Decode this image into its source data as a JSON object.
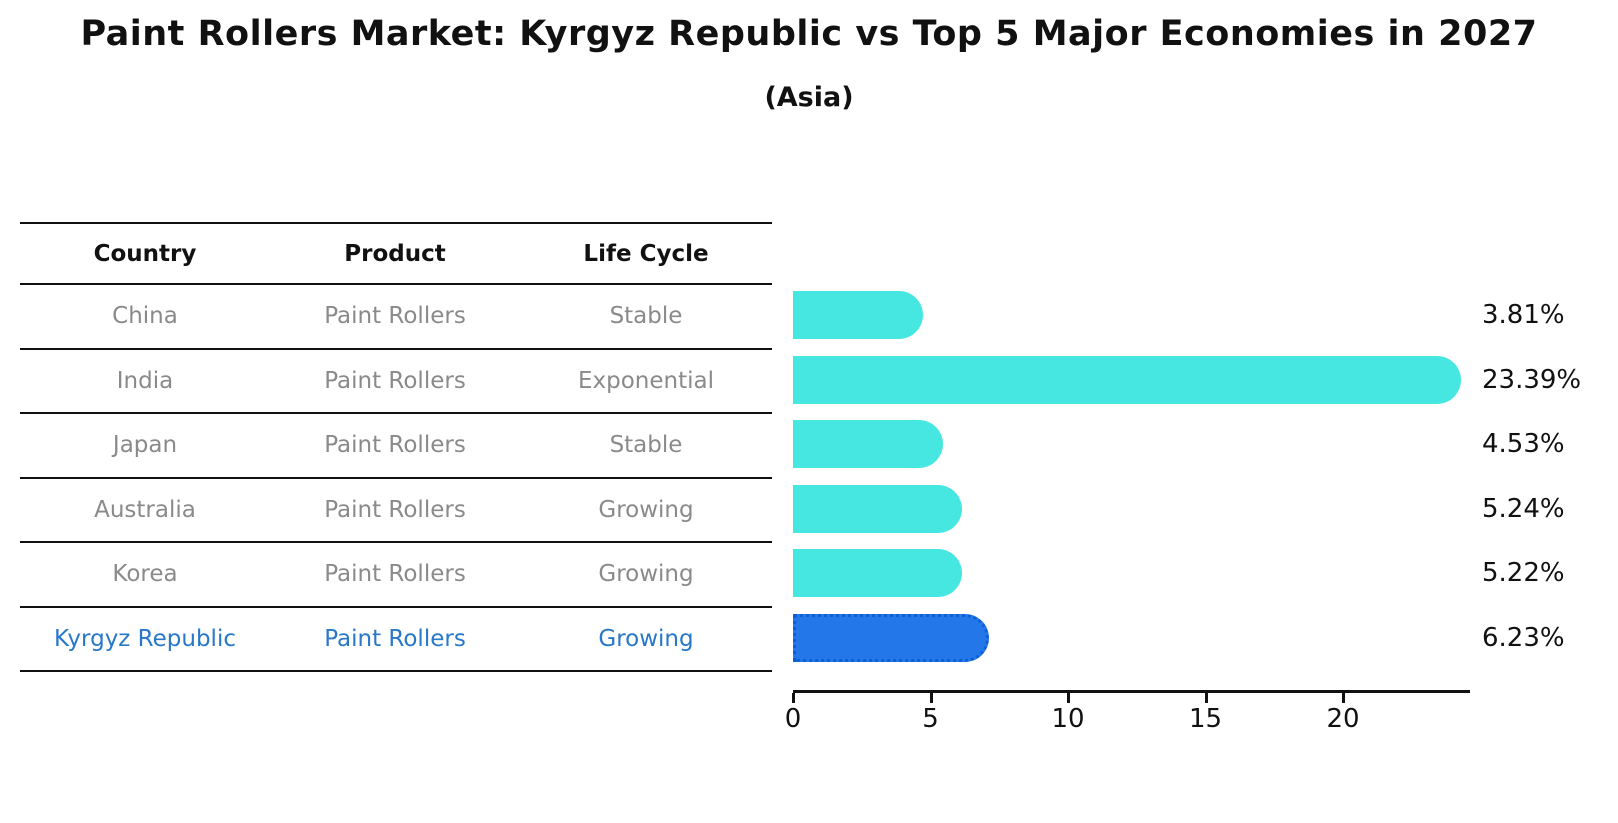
{
  "title": "Paint Rollers Market: Kyrgyz Republic vs Top 5 Major Economies in 2027",
  "subtitle": "(Asia)",
  "table": {
    "headers": [
      "Country",
      "Product",
      "Life Cycle"
    ],
    "rows": [
      {
        "country": "China",
        "product": "Paint Rollers",
        "life_cycle": "Stable",
        "highlight": false
      },
      {
        "country": "India",
        "product": "Paint Rollers",
        "life_cycle": "Exponential",
        "highlight": false
      },
      {
        "country": "Japan",
        "product": "Paint Rollers",
        "life_cycle": "Stable",
        "highlight": false
      },
      {
        "country": "Australia",
        "product": "Paint Rollers",
        "life_cycle": "Growing",
        "highlight": false
      },
      {
        "country": "Korea",
        "product": "Paint Rollers",
        "life_cycle": "Growing",
        "highlight": false
      },
      {
        "country": "Kyrgyz Republic",
        "product": "Paint Rollers",
        "life_cycle": "Growing",
        "highlight": true
      }
    ]
  },
  "chart_data": {
    "type": "bar",
    "orientation": "horizontal",
    "title": "Paint Rollers Market: Kyrgyz Republic vs Top 5 Major Economies in 2027 (Asia)",
    "categories": [
      "China",
      "India",
      "Japan",
      "Australia",
      "Korea",
      "Kyrgyz Republic"
    ],
    "values": [
      3.81,
      23.39,
      4.53,
      5.24,
      5.22,
      6.23
    ],
    "value_labels": [
      "3.81%",
      "23.39%",
      "4.53%",
      "5.24%",
      "5.22%",
      "6.23%"
    ],
    "x_ticks": [
      0,
      5,
      10,
      15,
      20
    ],
    "xlim": [
      0,
      24.6
    ],
    "grid": false,
    "legend": false,
    "highlight_index": 5,
    "bar_color": "#45e7e0",
    "highlight_color": "#2377e8"
  },
  "colors": {
    "bar": "#45e7e0",
    "highlight_bar": "#2377e8",
    "highlight_border": "#0d5fd8",
    "highlight_text": "#2878c9",
    "row_text": "#8a8a8a",
    "header_text": "#111111",
    "axis": "#111111"
  }
}
